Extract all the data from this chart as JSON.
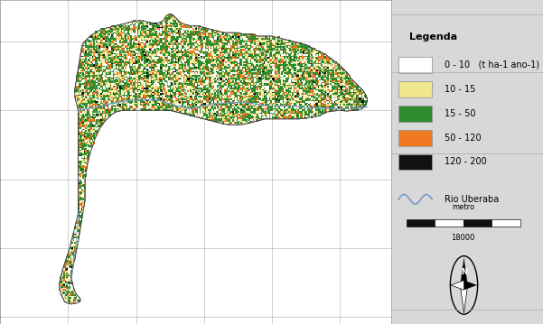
{
  "legend_title": "Legenda",
  "legend_items": [
    {
      "label": "0 - 10   (t ha-1 ano-1)",
      "color": "#ffffff",
      "edgecolor": "#999999"
    },
    {
      "label": "10 - 15",
      "color": "#f0e68c",
      "edgecolor": "#999999"
    },
    {
      "label": "15 - 50",
      "color": "#2e8b2e",
      "edgecolor": "#999999"
    },
    {
      "label": "50 - 120",
      "color": "#f07820",
      "edgecolor": "#999999"
    },
    {
      "label": "120 - 200",
      "color": "#111111",
      "edgecolor": "#999999"
    }
  ],
  "river_label": "Rio Uberaba",
  "river_color": "#7799cc",
  "scale_label": "metro",
  "scale_value": "18000",
  "xlim": [
    740000,
    855000
  ],
  "ylim": [
    7758000,
    7852000
  ],
  "xticks": [
    740000,
    760000,
    780000,
    800000,
    820000,
    840000
  ],
  "yticks": [
    7760000,
    7780000,
    7800000,
    7820000,
    7840000
  ],
  "grid_color": "#bbbbbb",
  "grid_linewidth": 0.5,
  "outer_bg": "#d8d8d8",
  "map_area_bg": "#ffffff",
  "tick_fontsize": 6,
  "legend_fontsize": 7,
  "colors": [
    "#ffffff",
    "#f0e68c",
    "#2e8b2e",
    "#f07820",
    "#111111"
  ],
  "probs": [
    0.22,
    0.18,
    0.43,
    0.14,
    0.03
  ],
  "cell_size": 800,
  "seed": 42
}
